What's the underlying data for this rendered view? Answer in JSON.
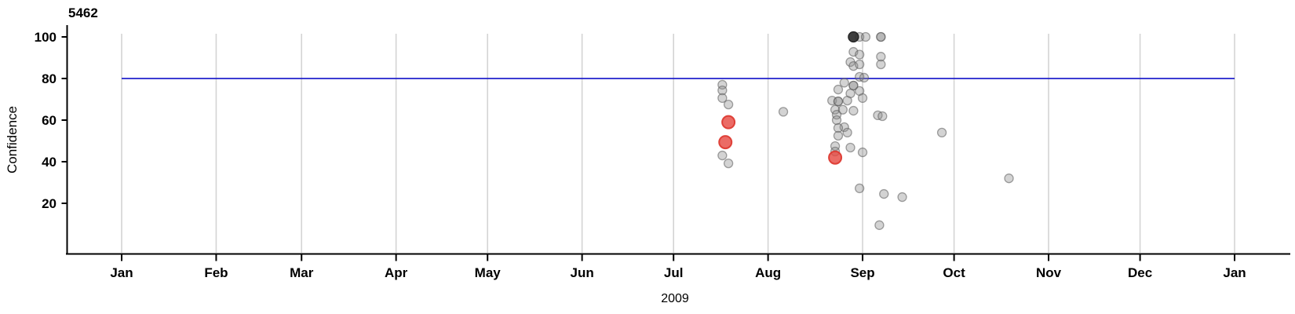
{
  "title": "5462",
  "axes": {
    "y_label": "Confidence",
    "x_label": "2009",
    "y_ticks": [
      100,
      80,
      60,
      40,
      20
    ],
    "x_tick_labels": [
      "Jan",
      "Feb",
      "Mar",
      "Apr",
      "May",
      "Jun",
      "Jul",
      "Aug",
      "Sep",
      "Oct",
      "Nov",
      "Dec",
      "Jan"
    ],
    "x_tick_days": [
      0,
      31,
      59,
      90,
      120,
      151,
      181,
      212,
      243,
      273,
      304,
      334,
      365
    ]
  },
  "chart_data": {
    "type": "scatter",
    "title": "5462",
    "xlabel": "2009",
    "ylabel": "Confidence",
    "x_unit": "day_of_year_2009",
    "xlim_days": [
      -18,
      385
    ],
    "ylim": [
      -4,
      106
    ],
    "grid": "vertical-at-month-starts",
    "reference_line": {
      "y": 80,
      "start_day": 0,
      "end_day": 365
    },
    "series": [
      {
        "name": "observations-gray",
        "points": [
          {
            "day": 197,
            "conf": 77.0
          },
          {
            "day": 197,
            "conf": 74.3
          },
          {
            "day": 197,
            "conf": 70.6
          },
          {
            "day": 199,
            "conf": 67.5
          },
          {
            "day": 197,
            "conf": 43.0
          },
          {
            "day": 199,
            "conf": 39.2
          },
          {
            "day": 217,
            "conf": 64.0
          },
          {
            "day": 242,
            "conf": 100
          },
          {
            "day": 244,
            "conf": 100
          },
          {
            "day": 249,
            "conf": 100
          },
          {
            "day": 249,
            "conf": 100
          },
          {
            "day": 240,
            "conf": 92.8
          },
          {
            "day": 242,
            "conf": 91.5
          },
          {
            "day": 249,
            "conf": 90.5
          },
          {
            "day": 239,
            "conf": 87.9
          },
          {
            "day": 240,
            "conf": 86.0
          },
          {
            "day": 242,
            "conf": 86.8
          },
          {
            "day": 249,
            "conf": 86.8
          },
          {
            "day": 242,
            "conf": 80.8
          },
          {
            "day": 243.5,
            "conf": 80.4
          },
          {
            "day": 237,
            "conf": 78.0
          },
          {
            "day": 240,
            "conf": 76.6
          },
          {
            "day": 240,
            "conf": 76.6
          },
          {
            "day": 235,
            "conf": 74.7
          },
          {
            "day": 239,
            "conf": 72.8
          },
          {
            "day": 242,
            "conf": 74.0
          },
          {
            "day": 243,
            "conf": 70.6
          },
          {
            "day": 233,
            "conf": 69.4
          },
          {
            "day": 235,
            "conf": 69.0
          },
          {
            "day": 235,
            "conf": 69.0
          },
          {
            "day": 238,
            "conf": 69.4
          },
          {
            "day": 234,
            "conf": 65.0
          },
          {
            "day": 236.5,
            "conf": 65.0
          },
          {
            "day": 240,
            "conf": 64.5
          },
          {
            "day": 234.5,
            "conf": 62.6
          },
          {
            "day": 234.5,
            "conf": 60.0
          },
          {
            "day": 248,
            "conf": 62.3
          },
          {
            "day": 249.5,
            "conf": 61.9
          },
          {
            "day": 237,
            "conf": 56.6
          },
          {
            "day": 235,
            "conf": 56.2
          },
          {
            "day": 235,
            "conf": 52.5
          },
          {
            "day": 238,
            "conf": 54.0
          },
          {
            "day": 234,
            "conf": 47.5
          },
          {
            "day": 234,
            "conf": 44.9
          },
          {
            "day": 239,
            "conf": 46.8
          },
          {
            "day": 243,
            "conf": 44.5
          },
          {
            "day": 242,
            "conf": 27.2
          },
          {
            "day": 250,
            "conf": 24.5
          },
          {
            "day": 256,
            "conf": 23.0
          },
          {
            "day": 248.5,
            "conf": 9.5
          },
          {
            "day": 269,
            "conf": 54.0
          },
          {
            "day": 291,
            "conf": 32.0
          }
        ]
      },
      {
        "name": "observations-red-highlight",
        "points": [
          {
            "day": 199,
            "conf": 59.0
          },
          {
            "day": 198,
            "conf": 49.4
          },
          {
            "day": 234,
            "conf": 42.0
          }
        ]
      },
      {
        "name": "observations-dark",
        "points": [
          {
            "day": 240,
            "conf": 100
          }
        ]
      }
    ]
  },
  "colors": {
    "reference_line": "#2121cc",
    "grid_line": "#d4d4d4",
    "axis_line": "#000000",
    "gray_point_fill": "#8c8c8c",
    "gray_point_stroke": "#5a5a5a",
    "red_point_fill": "#e6463e",
    "red_point_stroke": "#dd352c",
    "black_point_fill": "#2e2e2e",
    "black_point_stroke": "#1a1a1a"
  }
}
